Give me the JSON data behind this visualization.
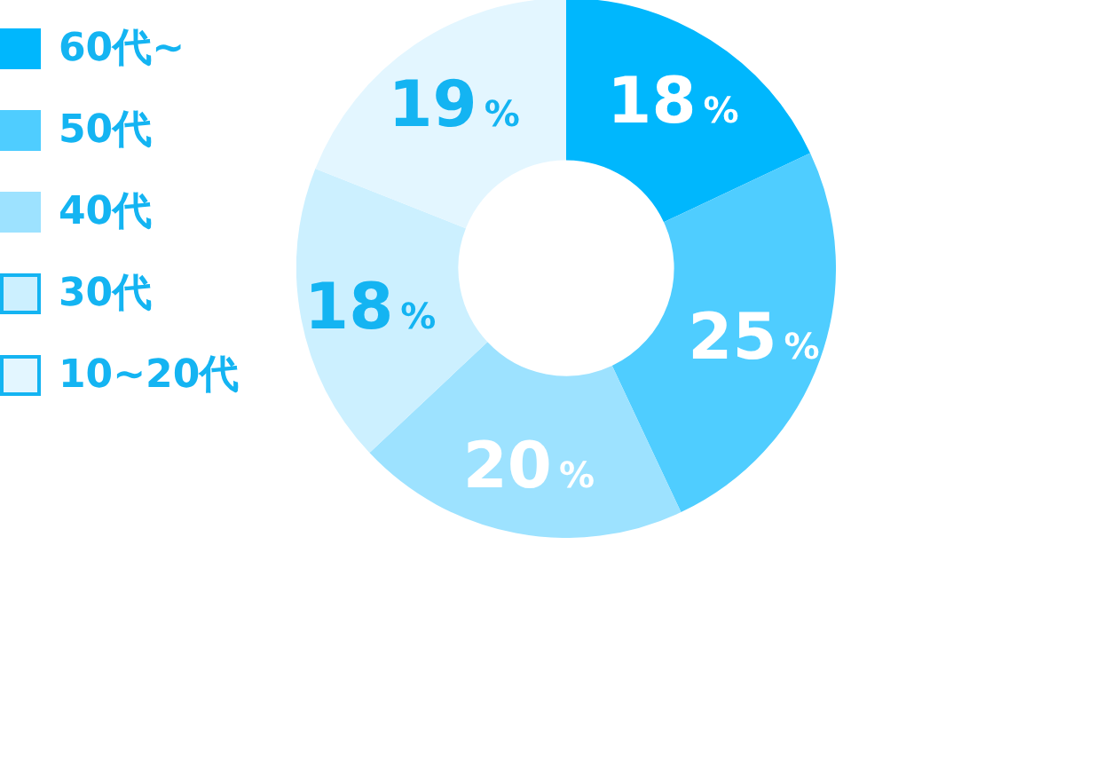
{
  "chart_data": {
    "type": "donut",
    "categories": [
      "60代~",
      "50代",
      "40代",
      "30代",
      "10~20代"
    ],
    "values": [
      18,
      25,
      20,
      18,
      19
    ],
    "colors": [
      "#00b7fd",
      "#4fcdff",
      "#9de2ff",
      "#ccf0ff",
      "#e3f6ff"
    ],
    "value_labels": [
      "18%",
      "25%",
      "20%",
      "18%",
      "19%"
    ],
    "legend": "left"
  }
}
